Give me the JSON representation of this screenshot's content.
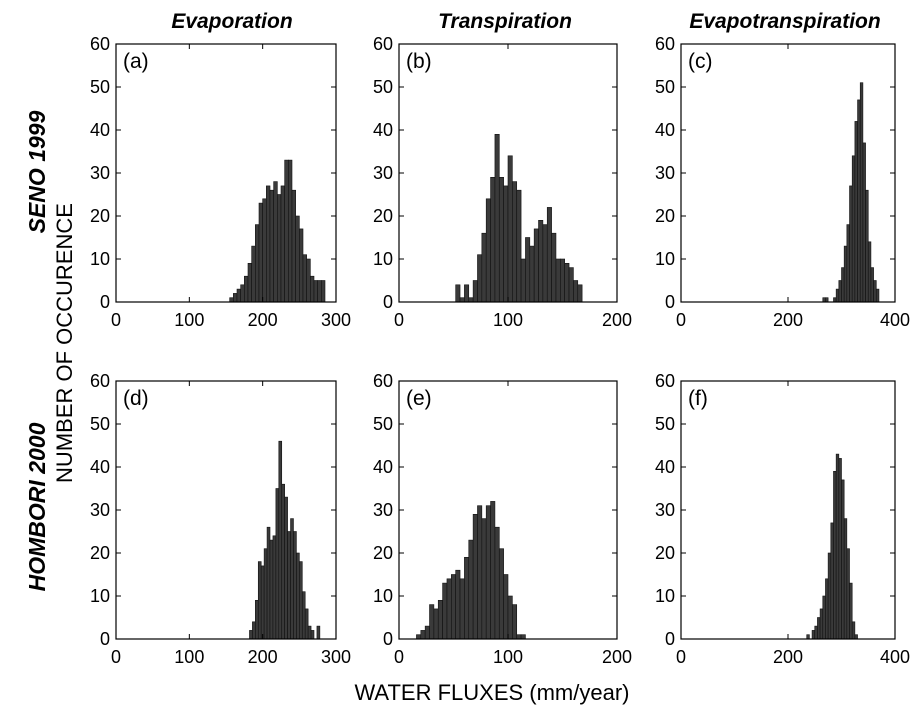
{
  "figure": {
    "column_titles": [
      "Evaporation",
      "Transpiration",
      "Evapotranspiration"
    ],
    "row_titles": [
      "SENO 1999",
      "HOMBORI 2000"
    ],
    "ylabel": "NUMBER OF OCCURENCE",
    "xlabel": "WATER FLUXES (mm/year)"
  },
  "chart_data": [
    {
      "type": "bar",
      "panel": "(a)",
      "xlim": [
        0,
        300
      ],
      "ylim": [
        0,
        60
      ],
      "xticks": [
        "0",
        "100",
        "200",
        "300"
      ],
      "yticks": [
        "0",
        "10",
        "20",
        "30",
        "40",
        "50",
        "60"
      ],
      "bin_width": 5,
      "x": [
        157.5,
        162.5,
        167.5,
        172.5,
        177.5,
        182.5,
        187.5,
        192.5,
        197.5,
        202.5,
        207.5,
        212.5,
        217.5,
        222.5,
        227.5,
        232.5,
        237.5,
        242.5,
        247.5,
        252.5,
        257.5,
        262.5,
        267.5,
        272.5,
        277.5,
        282.5
      ],
      "values": [
        1,
        2,
        3,
        4,
        6,
        9,
        13,
        18,
        23,
        24,
        27,
        26,
        28,
        25,
        27,
        33,
        33,
        26,
        20,
        17,
        11,
        10,
        6,
        5,
        5,
        5
      ]
    },
    {
      "type": "bar",
      "panel": "(b)",
      "xlim": [
        0,
        200
      ],
      "ylim": [
        0,
        60
      ],
      "xticks": [
        "0",
        "100",
        "200"
      ],
      "yticks": [
        "0",
        "10",
        "20",
        "30",
        "40",
        "50",
        "60"
      ],
      "bin_width": 4,
      "x": [
        54,
        58,
        62,
        66,
        70,
        74,
        78,
        82,
        86,
        90,
        94,
        98,
        102,
        106,
        110,
        114,
        118,
        122,
        126,
        130,
        134,
        138,
        142,
        146,
        150,
        154,
        158,
        162,
        166
      ],
      "values": [
        4,
        1,
        4,
        1,
        5,
        11,
        16,
        24,
        29,
        39,
        29,
        27,
        34,
        28,
        26,
        10,
        15,
        13,
        17,
        19,
        18,
        22,
        16,
        10,
        10,
        9,
        8,
        5,
        4
      ]
    },
    {
      "type": "bar",
      "panel": "(c)",
      "xlim": [
        0,
        400
      ],
      "ylim": [
        0,
        60
      ],
      "xticks": [
        "0",
        "200",
        "400"
      ],
      "yticks": [
        "0",
        "10",
        "20",
        "30",
        "40",
        "50",
        "60"
      ],
      "bin_width": 5,
      "x": [
        262.5,
        267.5,
        272.5,
        277.5,
        282.5,
        287.5,
        292.5,
        297.5,
        302.5,
        307.5,
        312.5,
        317.5,
        322.5,
        327.5,
        332.5,
        337.5,
        342.5,
        347.5,
        352.5,
        357.5,
        362.5,
        367.5,
        372.5
      ],
      "values": [
        0,
        1,
        1,
        0,
        0,
        1,
        3,
        5,
        8,
        13,
        18,
        27,
        34,
        42,
        47,
        51,
        37,
        26,
        14,
        8,
        5,
        3,
        0
      ]
    },
    {
      "type": "bar",
      "panel": "(d)",
      "xlim": [
        0,
        300
      ],
      "ylim": [
        0,
        60
      ],
      "xticks": [
        "0",
        "100",
        "200",
        "300"
      ],
      "yticks": [
        "0",
        "10",
        "20",
        "30",
        "40",
        "50",
        "60"
      ],
      "bin_width": 4,
      "x": [
        184,
        188,
        192,
        196,
        200,
        204,
        208,
        212,
        216,
        220,
        224,
        228,
        232,
        236,
        240,
        244,
        248,
        252,
        256,
        260,
        264,
        268,
        272,
        276
      ],
      "values": [
        2,
        4,
        9,
        18,
        17,
        21,
        26,
        23,
        24,
        35,
        46,
        36,
        33,
        25,
        28,
        25,
        20,
        18,
        11,
        7,
        3,
        2,
        0,
        3
      ]
    },
    {
      "type": "bar",
      "panel": "(e)",
      "xlim": [
        0,
        200
      ],
      "ylim": [
        0,
        60
      ],
      "xticks": [
        "0",
        "100",
        "200"
      ],
      "yticks": [
        "0",
        "10",
        "20",
        "30",
        "40",
        "50",
        "60"
      ],
      "bin_width": 4,
      "x": [
        18,
        22,
        26,
        30,
        34,
        38,
        42,
        46,
        50,
        54,
        58,
        62,
        66,
        70,
        74,
        78,
        82,
        86,
        90,
        94,
        98,
        102,
        106,
        110,
        114
      ],
      "values": [
        1,
        2,
        3,
        8,
        7,
        9,
        13,
        14,
        15,
        16,
        14,
        19,
        23,
        29,
        31,
        28,
        31,
        32,
        26,
        21,
        15,
        10,
        8,
        1,
        1
      ]
    },
    {
      "type": "bar",
      "panel": "(f)",
      "xlim": [
        0,
        400
      ],
      "ylim": [
        0,
        60
      ],
      "xticks": [
        "0",
        "200",
        "400"
      ],
      "yticks": [
        "0",
        "10",
        "20",
        "30",
        "40",
        "50",
        "60"
      ],
      "bin_width": 5,
      "x": [
        237.5,
        242.5,
        247.5,
        252.5,
        257.5,
        262.5,
        267.5,
        272.5,
        277.5,
        282.5,
        287.5,
        292.5,
        297.5,
        302.5,
        307.5,
        312.5,
        317.5,
        322.5,
        327.5
      ],
      "values": [
        1,
        0,
        2,
        3,
        5,
        7,
        10,
        14,
        20,
        27,
        39,
        43,
        42,
        37,
        28,
        21,
        13,
        4,
        1
      ]
    }
  ]
}
